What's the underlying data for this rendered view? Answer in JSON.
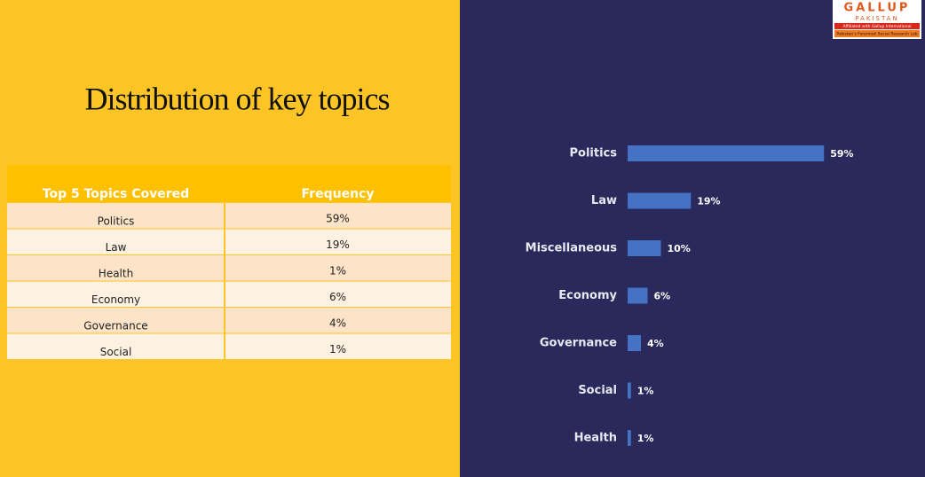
{
  "title": "Distribution of key topics",
  "logo": {
    "name": "GALLUP",
    "country": "PAKISTAN",
    "affiliation": "Affiliated with Gallup International",
    "tagline": "Pakistan's Foremost Social Research Lab"
  },
  "table": {
    "header": [
      "Top 5 Topics Covered",
      "Frequency"
    ],
    "rows": [
      [
        "Politics",
        "59%"
      ],
      [
        "Law",
        "19%"
      ],
      [
        "Health",
        "1%"
      ],
      [
        "Economy",
        "6%"
      ],
      [
        "Governance",
        "4%"
      ],
      [
        "Social",
        "1%"
      ]
    ]
  },
  "chart_data": {
    "type": "bar",
    "orientation": "horizontal",
    "categories": [
      "Politics",
      "Law",
      "Miscellaneous",
      "Economy",
      "Governance",
      "Social",
      "Health"
    ],
    "values": [
      59,
      19,
      10,
      6,
      4,
      1,
      1
    ],
    "value_labels": [
      "59%",
      "19%",
      "10%",
      "6%",
      "4%",
      "1%",
      "1%"
    ],
    "color": "#4472c4"
  }
}
